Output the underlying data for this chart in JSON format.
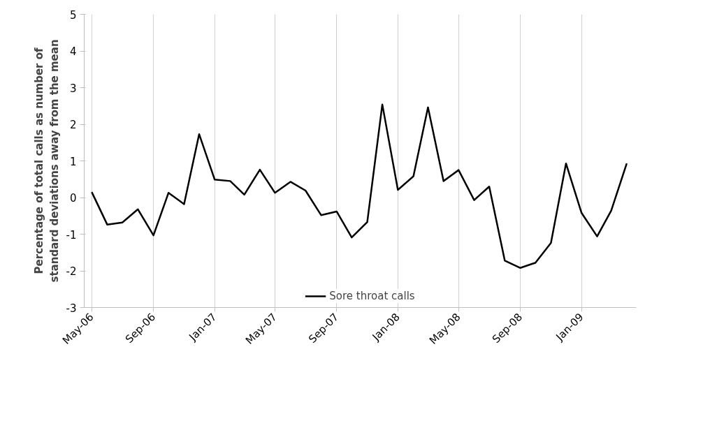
{
  "chart_data": {
    "type": "line",
    "ylabel": "Percentage of total calls as number of standard deviations away from the mean",
    "x": [
      "2006-05",
      "2006-06",
      "2006-07",
      "2006-08",
      "2006-09",
      "2006-10",
      "2006-11",
      "2006-12",
      "2007-01",
      "2007-02",
      "2007-03",
      "2007-04",
      "2007-05",
      "2007-06",
      "2007-07",
      "2007-08",
      "2007-09",
      "2007-10",
      "2007-11",
      "2007-12",
      "2008-01",
      "2008-02",
      "2008-03",
      "2008-04",
      "2008-05",
      "2008-06",
      "2008-07",
      "2008-08",
      "2008-09",
      "2008-10",
      "2008-11",
      "2008-12",
      "2009-01",
      "2009-02",
      "2009-03",
      "2009-04"
    ],
    "series": [
      {
        "name": "Sore throat calls",
        "color": "#000000",
        "values": [
          0.15,
          -0.74,
          -0.68,
          -0.32,
          -1.03,
          0.13,
          -0.18,
          1.73,
          0.49,
          0.45,
          0.08,
          0.76,
          0.13,
          0.43,
          0.19,
          -0.48,
          -0.38,
          -1.09,
          -0.67,
          2.54,
          0.21,
          0.58,
          2.46,
          0.45,
          0.75,
          -0.07,
          0.3,
          -1.72,
          -1.92,
          -1.78,
          -1.24,
          0.93,
          -0.42,
          -1.06,
          -0.36,
          0.93
        ]
      }
    ],
    "xlim": [
      "2006-04-16",
      "2009-04-20"
    ],
    "xticks": [
      {
        "value": "2006-05",
        "label": "May-06"
      },
      {
        "value": "2006-09",
        "label": "Sep-06"
      },
      {
        "value": "2007-01",
        "label": "Jan-07"
      },
      {
        "value": "2007-05",
        "label": "May-07"
      },
      {
        "value": "2007-09",
        "label": "Sep-07"
      },
      {
        "value": "2008-01",
        "label": "Jan-08"
      },
      {
        "value": "2008-05",
        "label": "May-08"
      },
      {
        "value": "2008-09",
        "label": "Sep-08"
      },
      {
        "value": "2009-01",
        "label": "Jan-09"
      }
    ],
    "ylim": [
      -3,
      5
    ],
    "yticks": [
      -3,
      -2,
      -1,
      0,
      1,
      2,
      3,
      4,
      5
    ],
    "grid": "x",
    "legend": "bottom",
    "marker": "none",
    "line_style": "solid"
  }
}
